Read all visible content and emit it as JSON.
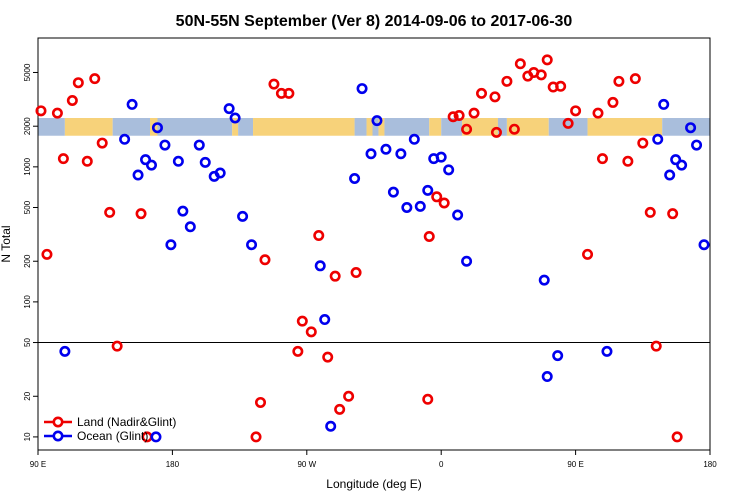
{
  "chart_data": {
    "type": "scatter",
    "title": "50N-55N September (Ver 8)   2014-09-06 to 2017-06-30",
    "xlabel": "Longitude (deg E)",
    "ylabel": "N Total",
    "x_axis": {
      "domain": "longitude, starting at 90 E and wrapping eastward through 180, 90 W, 0, 90 E to 180",
      "range": [
        0,
        450
      ],
      "ticks": [
        {
          "pos": 0,
          "label": "90 E"
        },
        {
          "pos": 90,
          "label": "180"
        },
        {
          "pos": 180,
          "label": "90 W"
        },
        {
          "pos": 270,
          "label": "0"
        },
        {
          "pos": 360,
          "label": "90 E"
        },
        {
          "pos": 450,
          "label": "180"
        }
      ]
    },
    "y_axis": {
      "scale": "log",
      "range": [
        8,
        9000
      ],
      "ticks": [
        10,
        20,
        50,
        100,
        200,
        500,
        1000,
        2000,
        5000
      ]
    },
    "reference_line": {
      "y": 50
    },
    "band": {
      "y_low": 1700,
      "y_high": 2300,
      "colors": [
        "#f7d27a",
        "#a9bedc"
      ]
    },
    "series": [
      {
        "name": "Land (Nadir&Glint)",
        "color": "#ee0000",
        "points": [
          [
            2,
            2600
          ],
          [
            6,
            225
          ],
          [
            13,
            2500
          ],
          [
            17,
            1150
          ],
          [
            23,
            3100
          ],
          [
            27,
            4200
          ],
          [
            33,
            1100
          ],
          [
            38,
            4500
          ],
          [
            43,
            1500
          ],
          [
            48,
            460
          ],
          [
            53,
            47
          ],
          [
            69,
            450
          ],
          [
            73,
            10
          ],
          [
            146,
            10
          ],
          [
            149,
            18
          ],
          [
            152,
            205
          ],
          [
            158,
            4100
          ],
          [
            163,
            3500
          ],
          [
            168,
            3500
          ],
          [
            174,
            43
          ],
          [
            177,
            72
          ],
          [
            183,
            60
          ],
          [
            188,
            310
          ],
          [
            194,
            39
          ],
          [
            199,
            155
          ],
          [
            202,
            16
          ],
          [
            208,
            20
          ],
          [
            213,
            165
          ],
          [
            261,
            19
          ],
          [
            262,
            305
          ],
          [
            267,
            600
          ],
          [
            272,
            540
          ],
          [
            278,
            2350
          ],
          [
            282,
            2400
          ],
          [
            287,
            1900
          ],
          [
            292,
            2500
          ],
          [
            297,
            3500
          ],
          [
            306,
            3300
          ],
          [
            307,
            1800
          ],
          [
            314,
            4300
          ],
          [
            319,
            1900
          ],
          [
            323,
            5800
          ],
          [
            328,
            4700
          ],
          [
            332,
            5000
          ],
          [
            337,
            4800
          ],
          [
            341,
            6200
          ],
          [
            345,
            3900
          ],
          [
            350,
            3950
          ],
          [
            355,
            2100
          ],
          [
            360,
            2600
          ],
          [
            368,
            225
          ],
          [
            375,
            2500
          ],
          [
            378,
            1150
          ],
          [
            385,
            3000
          ],
          [
            389,
            4300
          ],
          [
            395,
            1100
          ],
          [
            400,
            4500
          ],
          [
            405,
            1500
          ],
          [
            410,
            460
          ],
          [
            414,
            47
          ],
          [
            425,
            450
          ],
          [
            428,
            10
          ]
        ]
      },
      {
        "name": "Ocean (Glint)",
        "color": "#0000ee",
        "points": [
          [
            18,
            43
          ],
          [
            58,
            1600
          ],
          [
            63,
            2900
          ],
          [
            67,
            870
          ],
          [
            72,
            1130
          ],
          [
            76,
            1030
          ],
          [
            79,
            10
          ],
          [
            80,
            1950
          ],
          [
            85,
            1450
          ],
          [
            89,
            265
          ],
          [
            94,
            1100
          ],
          [
            97,
            470
          ],
          [
            102,
            360
          ],
          [
            108,
            1450
          ],
          [
            112,
            1080
          ],
          [
            118,
            850
          ],
          [
            122,
            900
          ],
          [
            128,
            2700
          ],
          [
            132,
            2300
          ],
          [
            137,
            430
          ],
          [
            143,
            265
          ],
          [
            189,
            185
          ],
          [
            192,
            74
          ],
          [
            196,
            12
          ],
          [
            212,
            820
          ],
          [
            217,
            3800
          ],
          [
            223,
            1250
          ],
          [
            227,
            2200
          ],
          [
            233,
            1350
          ],
          [
            238,
            650
          ],
          [
            243,
            1250
          ],
          [
            247,
            500
          ],
          [
            252,
            1600
          ],
          [
            256,
            510
          ],
          [
            261,
            670
          ],
          [
            265,
            1150
          ],
          [
            270,
            1180
          ],
          [
            275,
            950
          ],
          [
            281,
            440
          ],
          [
            287,
            200
          ],
          [
            339,
            145
          ],
          [
            341,
            28
          ],
          [
            348,
            40
          ],
          [
            381,
            43
          ],
          [
            415,
            1600
          ],
          [
            419,
            2900
          ],
          [
            423,
            870
          ],
          [
            427,
            1130
          ],
          [
            431,
            1030
          ],
          [
            437,
            1950
          ],
          [
            441,
            1450
          ],
          [
            446,
            265
          ]
        ]
      }
    ],
    "legend": {
      "position": "bottom-left"
    }
  }
}
